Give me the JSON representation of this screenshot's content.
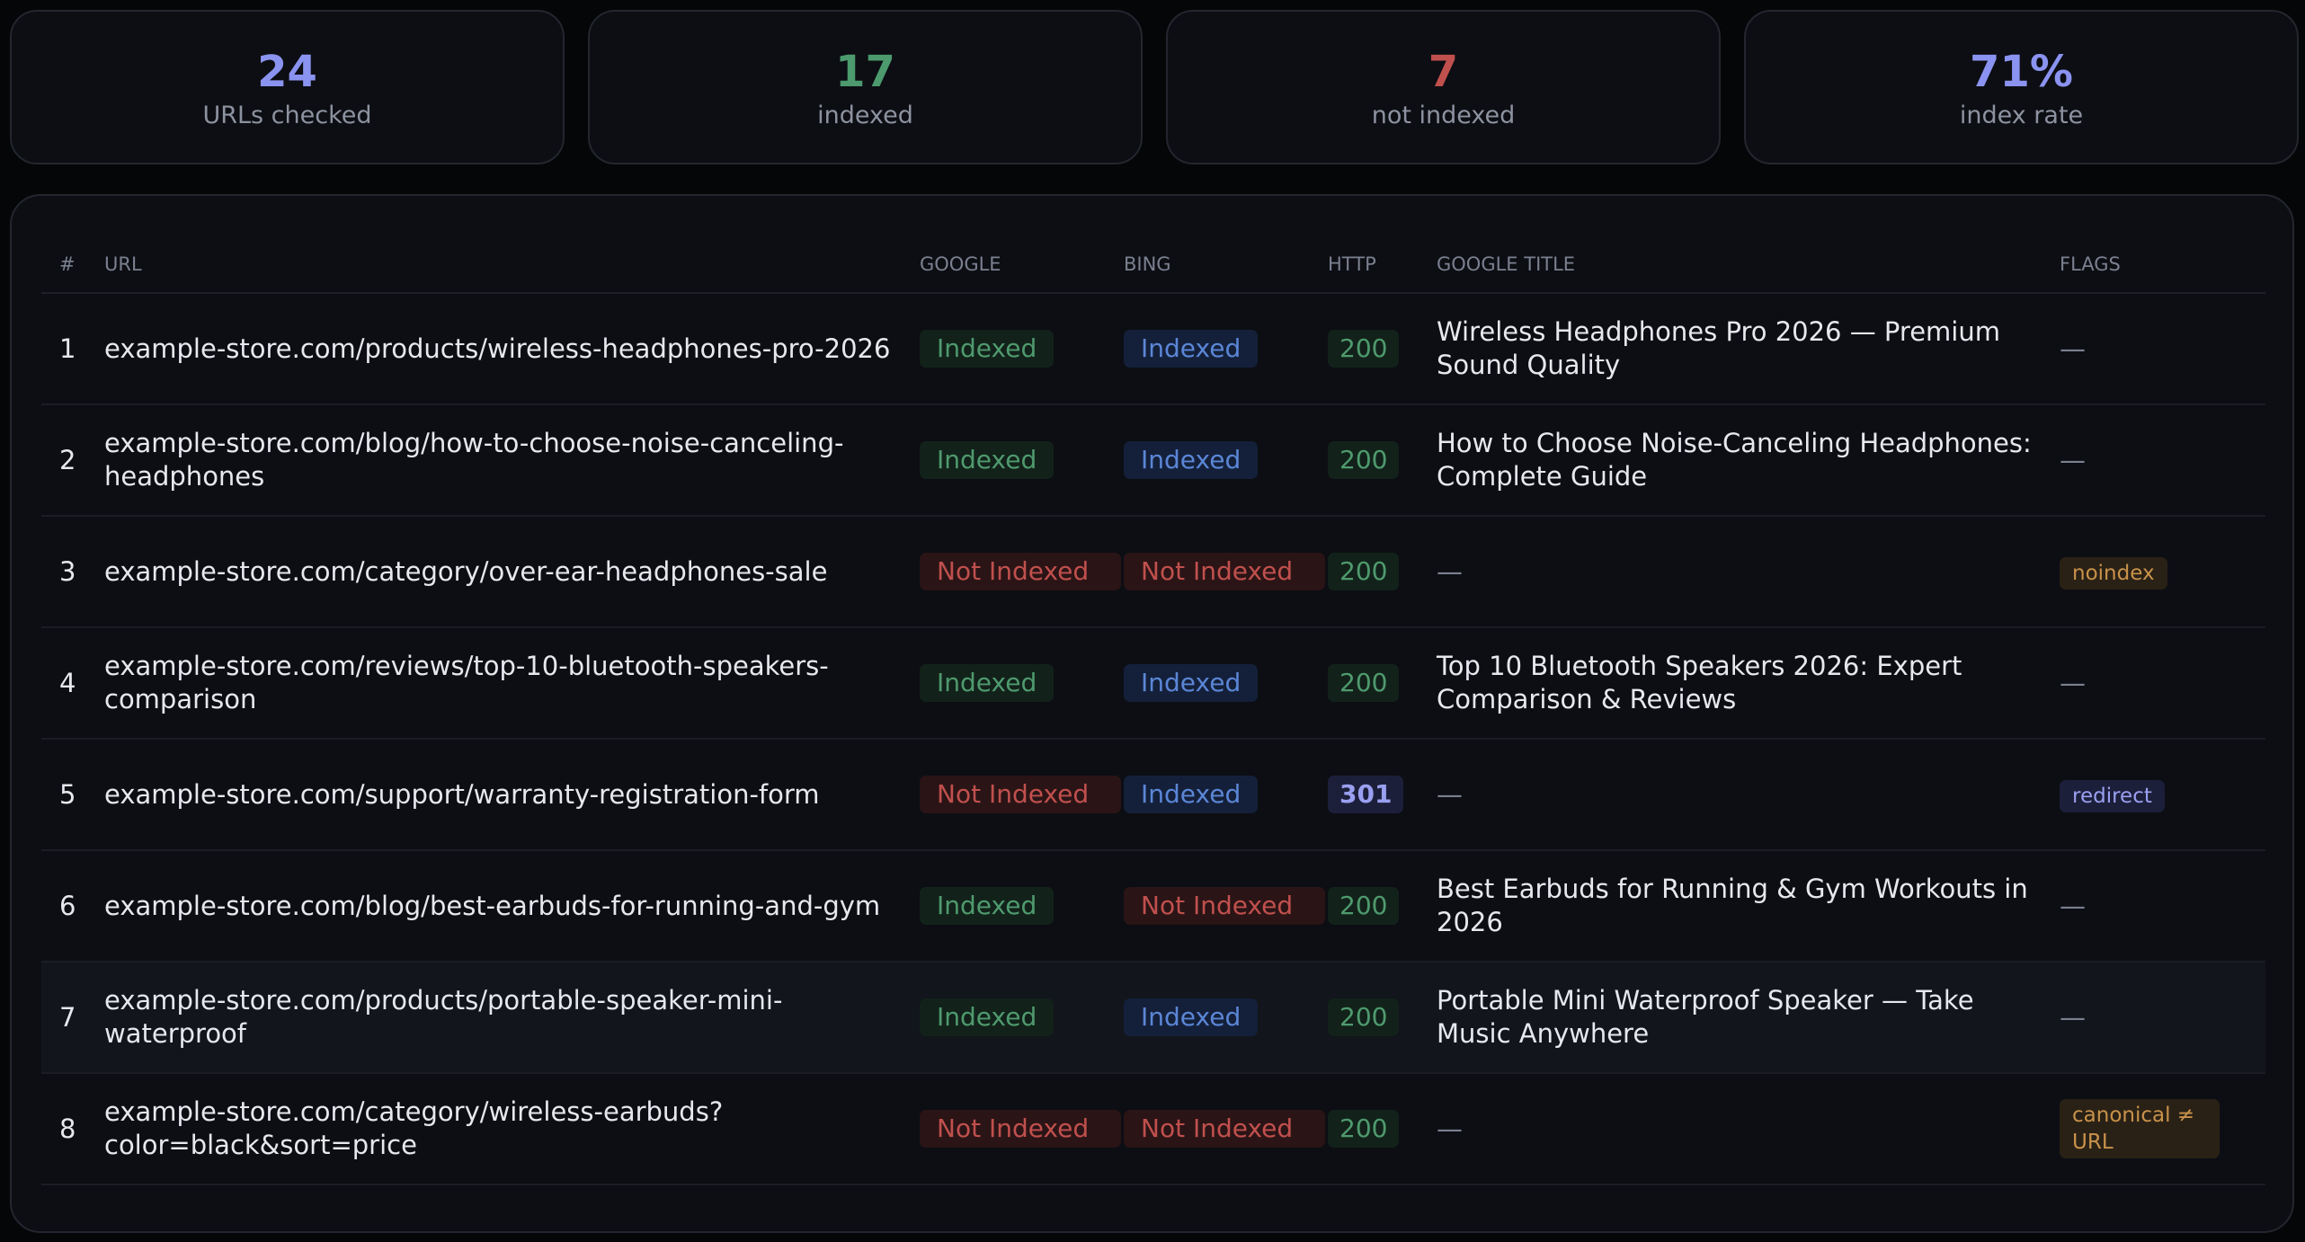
{
  "stats": [
    {
      "value": "24",
      "label": "URLs checked"
    },
    {
      "value": "17",
      "label": "indexed"
    },
    {
      "value": "7",
      "label": "not indexed"
    },
    {
      "value": "71%",
      "label": "index rate"
    }
  ],
  "table": {
    "headers": [
      "#",
      "URL",
      "GOOGLE",
      "BING",
      "HTTP",
      "GOOGLE TITLE",
      "FLAGS"
    ],
    "rows": [
      [
        "1",
        "example-store.com/products/wireless-headphones-pro-2026",
        "Indexed",
        "Indexed",
        "200",
        "Wireless Headphones Pro 2026 — Premium Sound Quality",
        "—"
      ],
      [
        "2",
        "example-store.com/blog/how-to-choose-noise-canceling-headphones",
        "Indexed",
        "Indexed",
        "200",
        "How to Choose Noise-Canceling Headphones: Complete Guide",
        "—"
      ],
      [
        "3",
        "example-store.com/category/over-ear-headphones-sale",
        "Not Indexed",
        "Not Indexed",
        "200",
        "—",
        "noindex"
      ],
      [
        "4",
        "example-store.com/reviews/top-10-bluetooth-speakers-comparison",
        "Indexed",
        "Indexed",
        "200",
        "Top 10 Bluetooth Speakers 2026: Expert Comparison & Reviews",
        "—"
      ],
      [
        "5",
        "example-store.com/support/warranty-registration-form",
        "Not Indexed",
        "Indexed",
        "301",
        "—",
        "redirect"
      ],
      [
        "6",
        "example-store.com/blog/best-earbuds-for-running-and-gym",
        "Indexed",
        "Not Indexed",
        "200",
        "Best Earbuds for Running & Gym Workouts in 2026",
        "—"
      ],
      [
        "7",
        "example-store.com/products/portable-speaker-mini-waterproof",
        "Indexed",
        "Indexed",
        "200",
        "Portable Mini Waterproof Speaker — Take Music Anywhere",
        "—"
      ],
      [
        "8",
        "example-store.com/category/wireless-earbuds?color=black&sort=price",
        "Not Indexed",
        "Not Indexed",
        "200",
        "—",
        "canonical ≠ URL"
      ]
    ]
  }
}
